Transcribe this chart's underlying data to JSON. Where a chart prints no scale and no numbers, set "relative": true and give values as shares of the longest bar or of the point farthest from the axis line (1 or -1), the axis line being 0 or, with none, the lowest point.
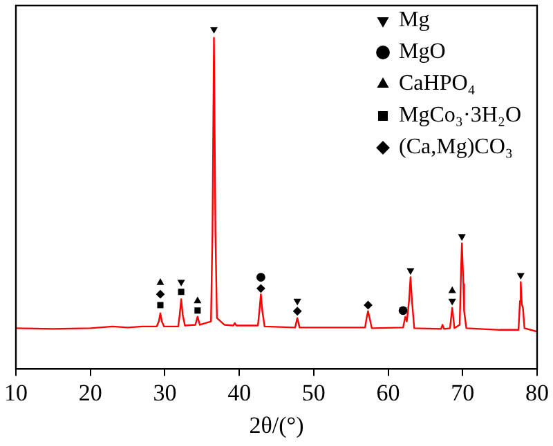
{
  "chart_data": {
    "type": "line",
    "xlabel": "2θ/(°)",
    "relative": true,
    "xlim": [
      10,
      80
    ],
    "xticks": [
      10,
      20,
      30,
      40,
      50,
      60,
      70,
      80
    ],
    "grid": false,
    "legend": "top right",
    "line_style": "solid",
    "marker": "none",
    "series": [
      {
        "type": "line",
        "color": "#ff0000",
        "x": [
          10,
          15,
          20,
          23,
          25,
          27,
          28.9,
          29.2,
          29.4,
          29.6,
          29.9,
          31.8,
          32.0,
          32.2,
          32.4,
          32.7,
          34.1,
          34.4,
          34.7,
          36.2,
          36.4,
          36.6,
          36.8,
          37.0,
          38,
          39.2,
          39.4,
          39.6,
          42.5,
          42.7,
          42.9,
          43.1,
          43.4,
          47.5,
          47.8,
          48.1,
          56.9,
          57.1,
          57.3,
          57.5,
          57.8,
          62.0,
          62.3,
          62.5,
          62.8,
          63.0,
          63.2,
          63.5,
          67.1,
          67.3,
          67.5,
          68.3,
          68.6,
          68.9,
          69.6,
          69.8,
          69.9,
          70.1,
          70.2,
          70.5,
          75,
          77.5,
          77.7,
          77.8,
          77.95,
          78.1,
          78.3,
          80
        ],
        "values": [
          0.12,
          0.118,
          0.12,
          0.125,
          0.122,
          0.125,
          0.125,
          0.14,
          0.164,
          0.14,
          0.125,
          0.125,
          0.16,
          0.205,
          0.16,
          0.128,
          0.13,
          0.154,
          0.13,
          0.14,
          0.4,
          0.975,
          0.4,
          0.15,
          0.13,
          0.128,
          0.135,
          0.128,
          0.128,
          0.17,
          0.22,
          0.17,
          0.125,
          0.122,
          0.15,
          0.122,
          0.122,
          0.15,
          0.17,
          0.15,
          0.12,
          0.122,
          0.154,
          0.14,
          0.2,
          0.27,
          0.2,
          0.12,
          0.118,
          0.13,
          0.118,
          0.12,
          0.18,
          0.12,
          0.13,
          0.3,
          0.37,
          0.25,
          0.17,
          0.12,
          0.115,
          0.115,
          0.2,
          0.256,
          0.19,
          0.18,
          0.12,
          0.11
        ]
      },
      {
        "type": "scatter",
        "name": "Mg",
        "color": "#000000",
        "marker": "triangle-down",
        "x": [
          32.2,
          36.6,
          47.8,
          63.0,
          68.6,
          69.9,
          77.8
        ],
        "values": [
          0.256,
          1,
          0.2,
          0.29,
          0.2,
          0.39,
          0.276
        ]
      },
      {
        "type": "scatter",
        "name": "MgO",
        "color": "#000000",
        "marker": "circle",
        "x": [
          42.9,
          62.0
        ],
        "values": [
          0.27,
          0.172
        ]
      },
      {
        "type": "scatter",
        "name": "CaHPO₄",
        "color": "#000000",
        "marker": "triangle",
        "x": [
          29.4,
          34.4,
          68.6
        ],
        "values": [
          0.254,
          0.2,
          0.23
        ]
      },
      {
        "type": "scatter",
        "name": "MgCo₃·3H₂O",
        "color": "#000000",
        "marker": "square",
        "x": [
          29.4,
          32.2,
          34.4
        ],
        "values": [
          0.188,
          0.227,
          0.172
        ]
      },
      {
        "type": "scatter",
        "name": "(Ca,Mg)CO₃",
        "color": "#000000",
        "marker": "diamond",
        "x": [
          29.4,
          42.9,
          47.8,
          57.3
        ],
        "values": [
          0.22,
          0.237,
          0.17,
          0.188
        ]
      }
    ]
  }
}
